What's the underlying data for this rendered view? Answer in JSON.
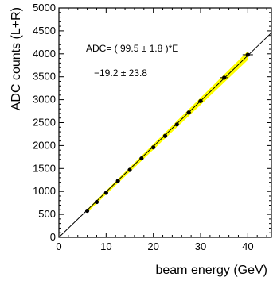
{
  "chart_data": {
    "type": "scatter",
    "xlabel": "beam energy (GeV)",
    "ylabel": "ADC counts (L+R)",
    "xlim": [
      0,
      45
    ],
    "ylim": [
      0,
      5000
    ],
    "x_ticks": [
      "0",
      "10",
      "20",
      "30",
      "40"
    ],
    "y_ticks": [
      "0",
      "500",
      "1000",
      "1500",
      "2000",
      "2500",
      "3000",
      "3500",
      "4000",
      "4500",
      "5000"
    ],
    "grid": false,
    "legend": "none",
    "fit": {
      "slope": 99.5,
      "slope_err": 1.8,
      "intercept": -19.2,
      "intercept_err": 23.8,
      "band_color": "#ffff00",
      "line_color": "#000000"
    },
    "annotation_line1": "ADC= ( 99.5 ±  1.8 )*E",
    "annotation_line2": "−19.2 ± 23.8",
    "series": [
      {
        "x": [
          6,
          8,
          10,
          12.5,
          15,
          17.5,
          20,
          22.5,
          25,
          27.5,
          30,
          35,
          40
        ],
        "y": [
          580,
          770,
          970,
          1230,
          1470,
          1720,
          1960,
          2210,
          2460,
          2720,
          2970,
          3480,
          3980
        ],
        "x_err": [
          0.35,
          0.35,
          0.35,
          0.35,
          0.35,
          0.35,
          0.35,
          0.35,
          0.35,
          0.5,
          0.5,
          0.9,
          1.1
        ]
      }
    ]
  }
}
